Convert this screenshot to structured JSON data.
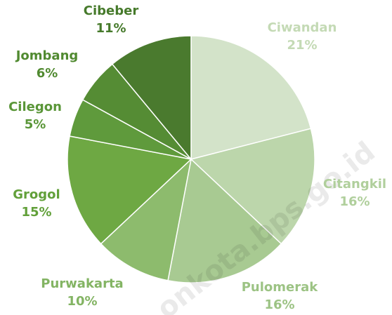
{
  "chart_data": {
    "type": "pie",
    "categories": [
      "Ciwandan",
      "Citangkil",
      "Pulomerak",
      "Purwakarta",
      "Grogol",
      "Cilegon",
      "Jombang",
      "Cibeber"
    ],
    "values": [
      21,
      16,
      16,
      10,
      15,
      5,
      6,
      11
    ],
    "value_labels": [
      "21%",
      "16%",
      "16%",
      "10%",
      "15%",
      "5%",
      "6%",
      "11%"
    ],
    "colors": [
      "#d3e3c9",
      "#bcd6ab",
      "#a8ca92",
      "#8dbb6d",
      "#6ea843",
      "#5f9a3c",
      "#558c34",
      "#4a7a2e"
    ],
    "watermark": "onkota.bps.go.id"
  }
}
